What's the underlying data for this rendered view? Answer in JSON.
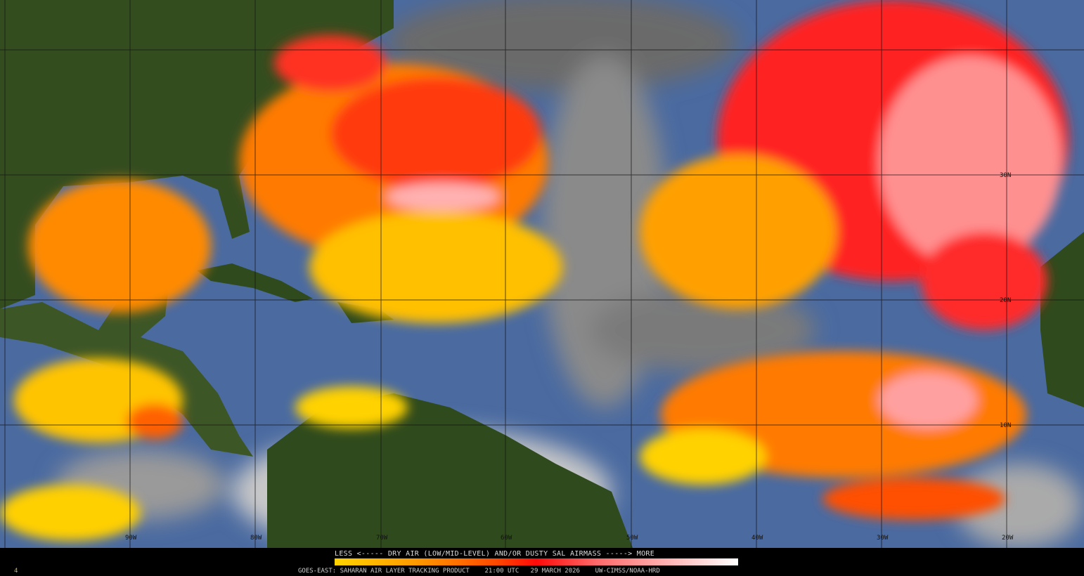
{
  "product": {
    "legend_title": "LESS <----- DRY AIR (LOW/MID-LEVEL) AND/OR DUSTY SAL AIRMASS -----> MORE",
    "colorbar": {
      "from": "LESS",
      "to": "MORE",
      "colors": [
        "#ffd200",
        "#ff9a00",
        "#ff4800",
        "#ff0a0a",
        "#ff6a6a",
        "#ffb0b0",
        "#ffffff"
      ]
    },
    "footer": "GOES-EAST: SAHARAN AIR LAYER TRACKING PRODUCT    21:00 UTC   29 MARCH 2026    UW-CIMSS/NOAA-HRD",
    "frame_number": "4"
  },
  "grid": {
    "latitude_labels": [
      "30N",
      "20N",
      "10N"
    ],
    "longitude_labels": [
      "90W",
      "80W",
      "70W",
      "60W",
      "50W",
      "40W",
      "30W",
      "20W"
    ]
  },
  "colors": {
    "ocean": "#4a6aa0",
    "land": "#2f4a1c",
    "cloud": "#9a9a9a",
    "dry_air_low": "#ffd200",
    "dry_air_mid": "#ff3000",
    "dry_air_high": "#ffc0c0"
  }
}
